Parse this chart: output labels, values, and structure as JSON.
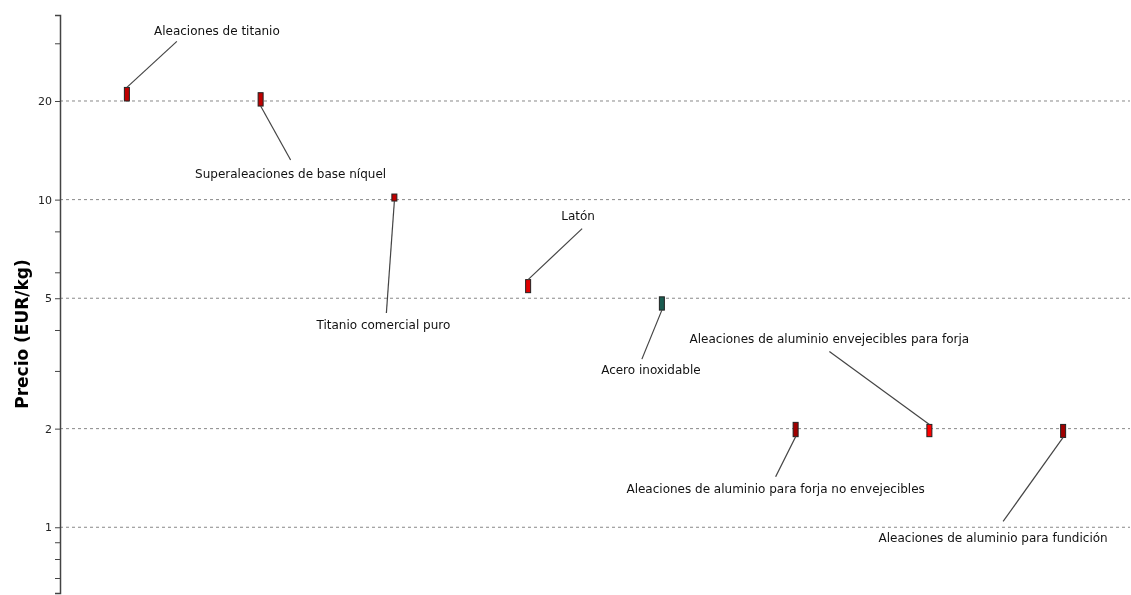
{
  "chart_data": {
    "type": "bar",
    "ylabel": "Precio (EUR/kg)",
    "log": "y",
    "grid": "y",
    "tick_labels": "y",
    "categories": [
      null,
      null,
      null,
      null,
      null,
      null,
      null,
      null
    ],
    "base": [
      20,
      19.3,
      9.9,
      5.2,
      4.6,
      1.89,
      1.89,
      1.88
    ],
    "values": [
      2,
      1.9,
      0.5,
      0.5,
      0.45,
      0.2,
      0.17,
      0.18
    ],
    "colors": [
      "#c00000",
      "#c00000",
      "#c00000",
      "#e00000",
      "#1a5c50",
      "#a00000",
      "#ff0000",
      "#a00000"
    ],
    "ylim": [
      0.63,
      36.6
    ],
    "yticks": [
      {
        "value": 0.7,
        "label": null
      },
      {
        "value": 0.8,
        "label": null
      },
      {
        "value": 0.9,
        "label": null
      },
      1,
      2,
      {
        "value": 3,
        "label": null
      },
      {
        "value": 4,
        "label": null
      },
      5,
      {
        "value": 6,
        "label": null
      },
      {
        "value": 8,
        "label": null
      },
      10,
      20,
      {
        "value": 30,
        "label": null
      }
    ],
    "annotations": [
      "Aleaciones de titanio",
      "Superaleaciones de base níquel",
      "Titanio comercial puro",
      "Latón",
      "Acero inoxidable",
      "Aleaciones de aluminio para forja no envejecibles",
      "Aleaciones de aluminio envejecibles para forja",
      "Aleaciones de aluminio para fundición"
    ]
  }
}
